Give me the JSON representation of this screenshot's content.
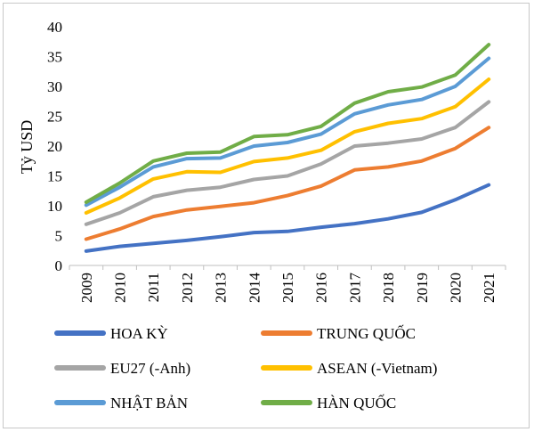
{
  "chart_data": {
    "type": "line",
    "title": "",
    "xlabel": "",
    "ylabel": "Tỷ USD",
    "ylim": [
      0,
      40
    ],
    "yticks": [
      0,
      5,
      10,
      15,
      20,
      25,
      30,
      35,
      40
    ],
    "grid": false,
    "legend_position": "bottom",
    "x": [
      "2009",
      "2010",
      "2011",
      "2012",
      "2013",
      "2014",
      "2015",
      "2016",
      "2017",
      "2018",
      "2019",
      "2020",
      "2021"
    ],
    "series": [
      {
        "name": "HOA KỲ",
        "color": "#4472c4",
        "values": [
          2.4,
          3.2,
          3.7,
          4.2,
          4.8,
          5.5,
          5.7,
          6.4,
          7.0,
          7.8,
          8.9,
          11.0,
          13.5
        ]
      },
      {
        "name": "TRUNG QUỐC",
        "color": "#ed7d31",
        "values": [
          4.4,
          6.1,
          8.2,
          9.3,
          9.9,
          10.5,
          11.7,
          13.3,
          16.0,
          16.5,
          17.5,
          19.6,
          23.1
        ]
      },
      {
        "name": "EU27 (-Anh)",
        "color": "#a5a5a5",
        "values": [
          6.9,
          8.8,
          11.5,
          12.6,
          13.1,
          14.4,
          15.0,
          17.0,
          20.0,
          20.5,
          21.2,
          23.1,
          27.4
        ]
      },
      {
        "name": "ASEAN (-Vietnam)",
        "color": "#ffc000",
        "values": [
          8.8,
          11.3,
          14.5,
          15.7,
          15.6,
          17.4,
          18.0,
          19.3,
          22.4,
          23.8,
          24.6,
          26.6,
          31.2
        ]
      },
      {
        "name": "NHẬT BẢN",
        "color": "#5b9bd5",
        "values": [
          10.1,
          13.1,
          16.5,
          17.9,
          18.0,
          20.0,
          20.6,
          22.0,
          25.4,
          26.9,
          27.8,
          30.0,
          34.7
        ]
      },
      {
        "name": "HÀN QUỐC",
        "color": "#70ad47",
        "values": [
          10.6,
          13.8,
          17.5,
          18.8,
          19.0,
          21.6,
          21.9,
          23.3,
          27.2,
          29.1,
          29.9,
          31.9,
          37.0
        ]
      }
    ]
  }
}
